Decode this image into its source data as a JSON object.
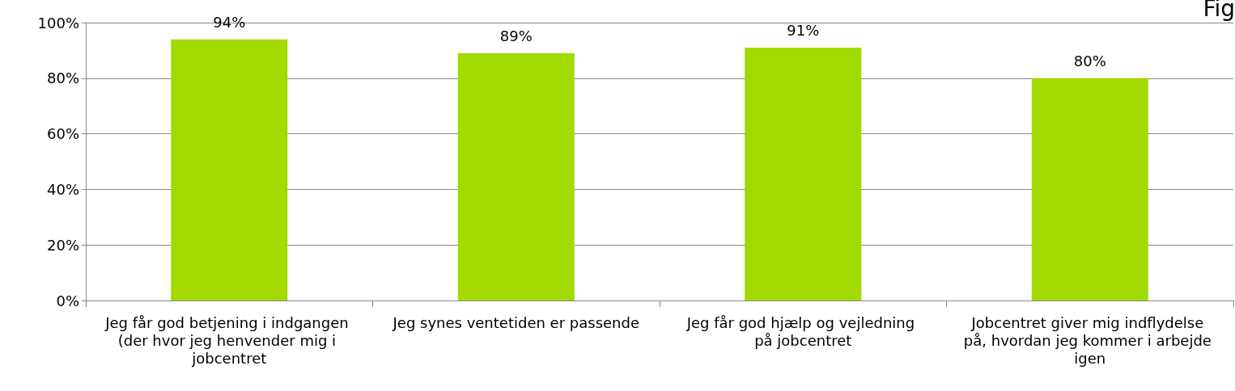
{
  "chart_data": {
    "type": "bar",
    "categories": [
      "Jeg får god betjening i indgangen (der hvor jeg henvender mig i jobcentret",
      "Jeg synes ventetiden er passende",
      "Jeg får god hjælp og vejledning på jobcentret",
      "Jobcentret giver mig indflydelse på, hvordan jeg kommer i arbejde igen"
    ],
    "values": [
      94,
      89,
      91,
      80
    ],
    "value_labels": [
      "94%",
      "89%",
      "91%",
      "80%"
    ],
    "color": "#a2d900",
    "ylim": [
      0,
      100
    ],
    "yticks": [
      {
        "value": 0,
        "label": "0%"
      },
      {
        "value": 20,
        "label": "20%"
      },
      {
        "value": 40,
        "label": "40%"
      },
      {
        "value": 60,
        "label": "60%"
      },
      {
        "value": 80,
        "label": "80%"
      },
      {
        "value": 100,
        "label": "100%"
      }
    ],
    "grid": "y",
    "annotations": [
      "Fig"
    ]
  }
}
